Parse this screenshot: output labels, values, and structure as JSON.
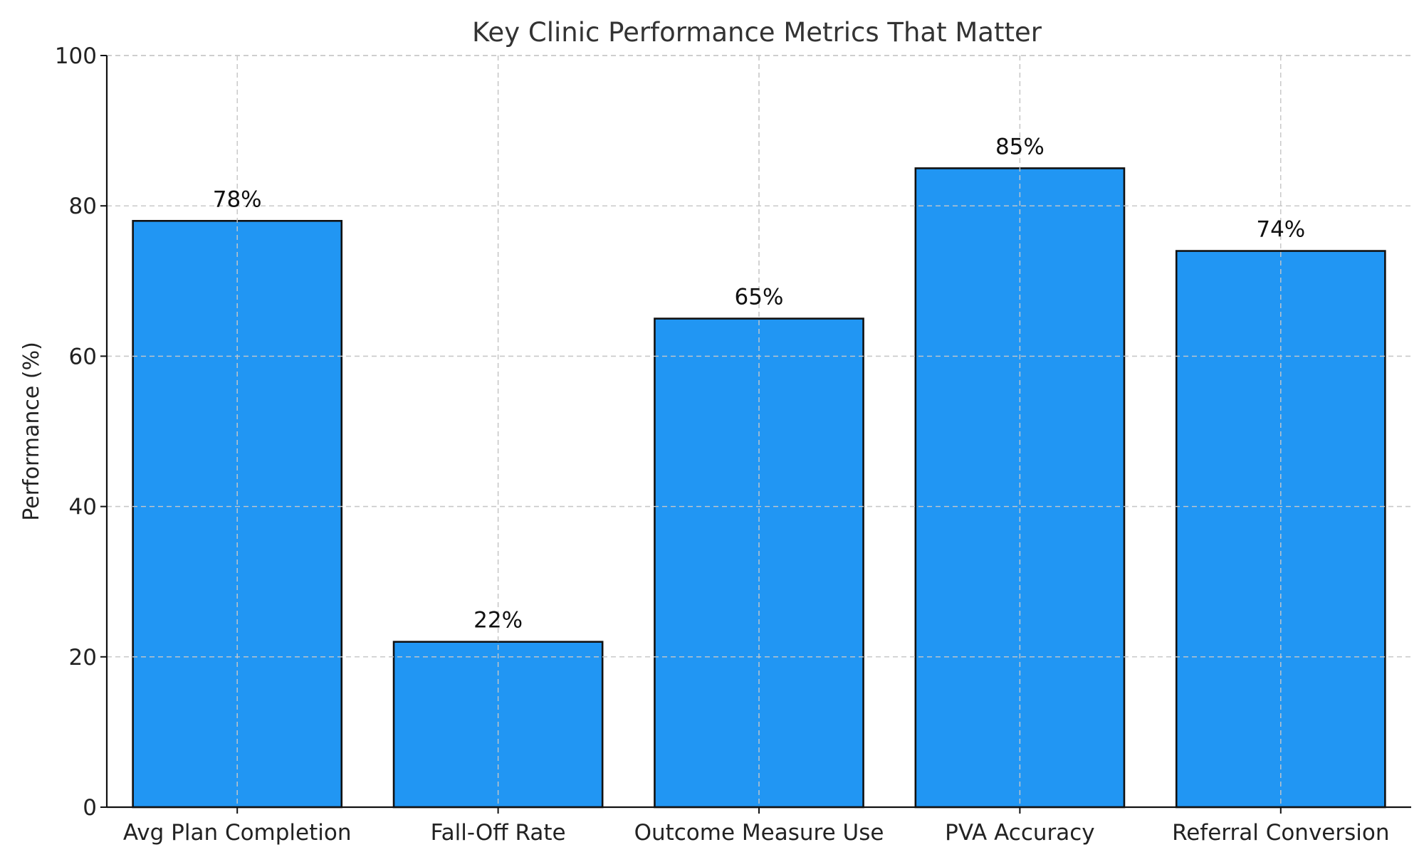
{
  "chart_data": {
    "type": "bar",
    "title": "Key Clinic Performance Metrics That Matter",
    "xlabel": "",
    "ylabel": "Performance (%)",
    "categories": [
      "Avg Plan Completion",
      "Fall-Off Rate",
      "Outcome Measure Use",
      "PVA Accuracy",
      "Referral Conversion"
    ],
    "values": [
      78,
      22,
      65,
      85,
      74
    ],
    "data_labels": [
      "78%",
      "22%",
      "65%",
      "85%",
      "74%"
    ],
    "ylim": [
      0,
      100
    ],
    "yticks": [
      0,
      20,
      40,
      60,
      80,
      100
    ],
    "grid": true,
    "legend": "none",
    "bar_color": "#2196f3",
    "edge_color": "#111111"
  }
}
